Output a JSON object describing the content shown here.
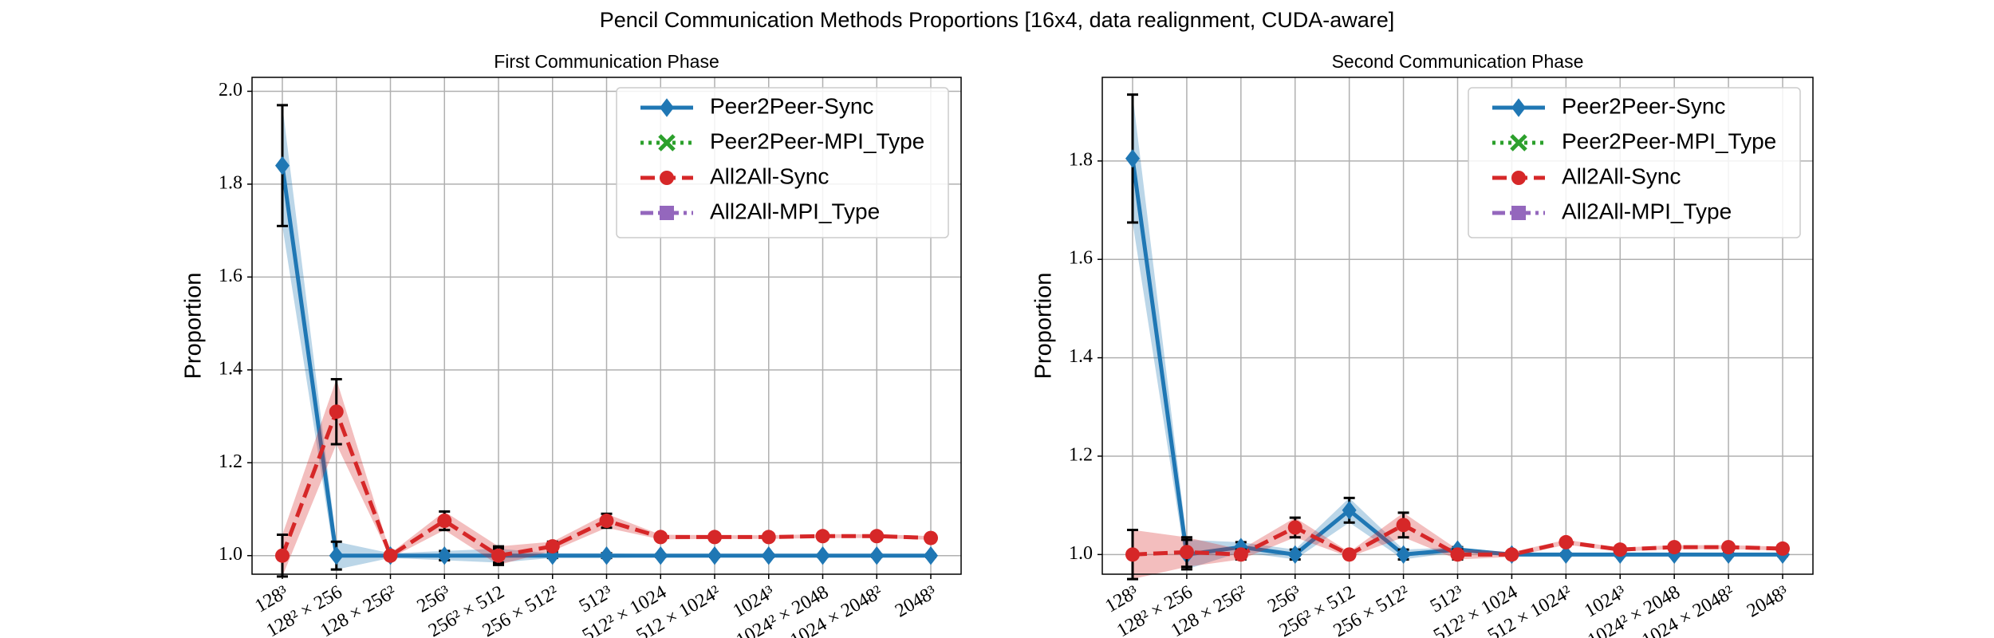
{
  "title": "Pencil Communication Methods Proportions [16x4, data realignment, CUDA-aware]",
  "chart_data": [
    {
      "type": "line",
      "title": "First Communication Phase",
      "y_label": "Proportion",
      "categories": [
        "128³",
        "128² × 256",
        "128 × 256²",
        "256³",
        "256² × 512",
        "256 × 512²",
        "512³",
        "512² × 1024",
        "512 × 1024²",
        "1024³",
        "1024² × 2048",
        "1024 × 2048²",
        "2048³"
      ],
      "series": [
        {
          "name": "Peer2Peer-Sync",
          "color": "#1f77b4",
          "marker": "diamond",
          "linestyle": "solid",
          "values": [
            1.84,
            1.0,
            1.0,
            1.0,
            1.0,
            1.0,
            1.0,
            1.0,
            1.0,
            1.0,
            1.0,
            1.0,
            1.0
          ],
          "errors": [
            0.13,
            0.03,
            0.005,
            0.01,
            0.015,
            0.005,
            0.005,
            0.003,
            0.003,
            0.003,
            0.003,
            0.003,
            0.003
          ]
        },
        {
          "name": "Peer2Peer-MPI_Type",
          "color": "#2ca02c",
          "marker": "x",
          "linestyle": "dotted",
          "values": [
            null,
            null,
            null,
            null,
            null,
            null,
            null,
            null,
            null,
            null,
            null,
            null,
            null
          ]
        },
        {
          "name": "All2All-Sync",
          "color": "#d62728",
          "marker": "circle",
          "linestyle": "dashed",
          "values": [
            1.0,
            1.31,
            1.0,
            1.075,
            1.0,
            1.02,
            1.075,
            1.04,
            1.04,
            1.04,
            1.042,
            1.042,
            1.038
          ],
          "errors": [
            0.045,
            0.07,
            0.005,
            0.02,
            0.02,
            0.01,
            0.015,
            0.005,
            0.004,
            0.004,
            0.004,
            0.004,
            0.004
          ]
        },
        {
          "name": "All2All-MPI_Type",
          "color": "#9467bd",
          "marker": "square",
          "linestyle": "dashdot",
          "values": [
            null,
            null,
            null,
            null,
            null,
            null,
            null,
            null,
            null,
            null,
            null,
            null,
            null
          ]
        }
      ],
      "ylim": [
        0.96,
        2.03
      ],
      "yticks": [
        {
          "value": 1,
          "label": "1.0"
        },
        1.2,
        1.4,
        1.6,
        1.8,
        {
          "value": 2,
          "label": "2.0"
        }
      ],
      "grid": true,
      "legend": "upper right"
    },
    {
      "type": "line",
      "title": "Second Communication Phase",
      "y_label": "Proportion",
      "categories": [
        "128³",
        "128² × 256",
        "128 × 256²",
        "256³",
        "256² × 512",
        "256 × 512²",
        "512³",
        "512² × 1024",
        "512 × 1024²",
        "1024³",
        "1024² × 2048",
        "1024 × 2048²",
        "2048³"
      ],
      "series": [
        {
          "name": "Peer2Peer-Sync",
          "color": "#1f77b4",
          "marker": "diamond",
          "linestyle": "solid",
          "values": [
            1.805,
            1.0,
            1.015,
            1.0,
            1.09,
            1.0,
            1.01,
            1.0,
            1.0,
            1.0,
            1.0,
            1.0,
            1.0
          ],
          "errors": [
            0.13,
            0.03,
            0.01,
            0.01,
            0.025,
            0.01,
            0.005,
            0.003,
            0.003,
            0.003,
            0.003,
            0.003,
            0.003
          ]
        },
        {
          "name": "Peer2Peer-MPI_Type",
          "color": "#2ca02c",
          "marker": "x",
          "linestyle": "dotted",
          "values": [
            null,
            null,
            null,
            null,
            null,
            null,
            null,
            null,
            null,
            null,
            null,
            null,
            null
          ]
        },
        {
          "name": "All2All-Sync",
          "color": "#d62728",
          "marker": "circle",
          "linestyle": "dashed",
          "values": [
            1.0,
            1.005,
            1.0,
            1.055,
            1.0,
            1.06,
            1.0,
            1.0,
            1.025,
            1.01,
            1.015,
            1.015,
            1.012
          ],
          "errors": [
            0.05,
            0.03,
            0.01,
            0.02,
            0.005,
            0.025,
            0.01,
            0.005,
            0.005,
            0.004,
            0.004,
            0.004,
            0.004
          ]
        },
        {
          "name": "All2All-MPI_Type",
          "color": "#9467bd",
          "marker": "square",
          "linestyle": "dashdot",
          "values": [
            null,
            null,
            null,
            null,
            null,
            null,
            null,
            null,
            null,
            null,
            null,
            null,
            null
          ]
        }
      ],
      "ylim": [
        0.96,
        1.97
      ],
      "yticks": [
        {
          "value": 1,
          "label": "1.0"
        },
        1.2,
        1.4,
        1.6,
        1.8
      ],
      "grid": true,
      "legend": "upper right"
    }
  ]
}
